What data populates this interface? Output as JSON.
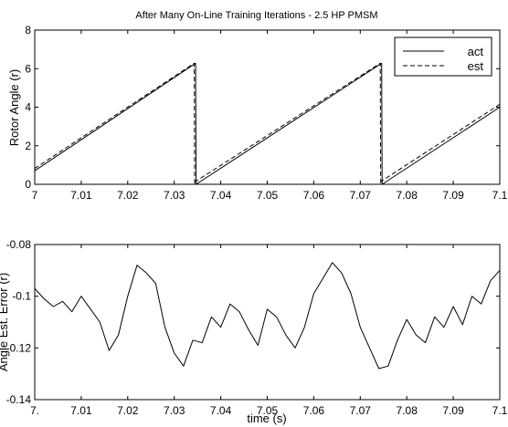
{
  "title": "After Many On-Line Training Iterations - 2.5 HP PMSM",
  "chart_data": [
    {
      "type": "line",
      "ylabel": "Rotor Angle (r)",
      "xlabel": "",
      "xlim": [
        7,
        7.1
      ],
      "ylim": [
        0,
        8
      ],
      "x_ticks": [
        "7",
        "7.01",
        "7.02",
        "7.03",
        "7.04",
        "7.05",
        "7.06",
        "7.07",
        "7.08",
        "7.09",
        "7.1"
      ],
      "y_ticks": [
        "0",
        "2",
        "4",
        "6",
        "8"
      ],
      "legend": "top-right",
      "series": [
        {
          "name": "act",
          "style": "solid",
          "color": "#000000",
          "x": [
            7.0,
            7.0346,
            7.0346,
            7.0347,
            7.0347,
            7.0746,
            7.0746,
            7.0747,
            7.0747,
            7.1
          ],
          "y": [
            0.7,
            6.28,
            6.28,
            0.0,
            0.0,
            6.28,
            6.28,
            0.0,
            0.0,
            4.0
          ]
        },
        {
          "name": "est",
          "style": "dashed",
          "color": "#000000",
          "x": [
            7.0,
            7.0343,
            7.0343,
            7.0344,
            7.0344,
            7.0743,
            7.0743,
            7.0744,
            7.0744,
            7.1
          ],
          "y": [
            0.82,
            6.28,
            6.28,
            0.0,
            0.12,
            6.28,
            6.28,
            0.0,
            0.14,
            4.15
          ]
        }
      ]
    },
    {
      "type": "line",
      "ylabel": "Angle Est. Error (r)",
      "xlabel": "time (s)",
      "xlim": [
        7,
        7.1
      ],
      "ylim": [
        -0.14,
        -0.08
      ],
      "x_ticks": [
        "7.",
        "7.01",
        "7.02",
        "7.03",
        "7.04",
        "7.05",
        "7.06",
        "7.07",
        "7.08",
        "7.09",
        "7.1"
      ],
      "y_ticks": [
        "-0.14",
        "-0.12",
        "-0.1",
        "-0.08"
      ],
      "series": [
        {
          "name": "",
          "style": "solid",
          "color": "#000000",
          "x": [
            7.0,
            7.002,
            7.004,
            7.006,
            7.008,
            7.01,
            7.012,
            7.014,
            7.016,
            7.018,
            7.02,
            7.022,
            7.024,
            7.026,
            7.028,
            7.03,
            7.032,
            7.034,
            7.036,
            7.038,
            7.04,
            7.042,
            7.044,
            7.046,
            7.048,
            7.05,
            7.052,
            7.054,
            7.056,
            7.058,
            7.06,
            7.062,
            7.064,
            7.066,
            7.068,
            7.07,
            7.072,
            7.074,
            7.076,
            7.078,
            7.08,
            7.082,
            7.084,
            7.086,
            7.088,
            7.09,
            7.092,
            7.094,
            7.096,
            7.098,
            7.1
          ],
          "y": [
            -0.097,
            -0.101,
            -0.104,
            -0.102,
            -0.106,
            -0.1,
            -0.105,
            -0.11,
            -0.121,
            -0.115,
            -0.1,
            -0.088,
            -0.091,
            -0.095,
            -0.112,
            -0.122,
            -0.127,
            -0.117,
            -0.118,
            -0.108,
            -0.112,
            -0.103,
            -0.106,
            -0.113,
            -0.119,
            -0.105,
            -0.108,
            -0.115,
            -0.12,
            -0.112,
            -0.099,
            -0.093,
            -0.087,
            -0.091,
            -0.099,
            -0.112,
            -0.12,
            -0.128,
            -0.127,
            -0.117,
            -0.109,
            -0.115,
            -0.118,
            -0.108,
            -0.112,
            -0.104,
            -0.111,
            -0.1,
            -0.103,
            -0.094,
            -0.09
          ]
        }
      ]
    }
  ]
}
